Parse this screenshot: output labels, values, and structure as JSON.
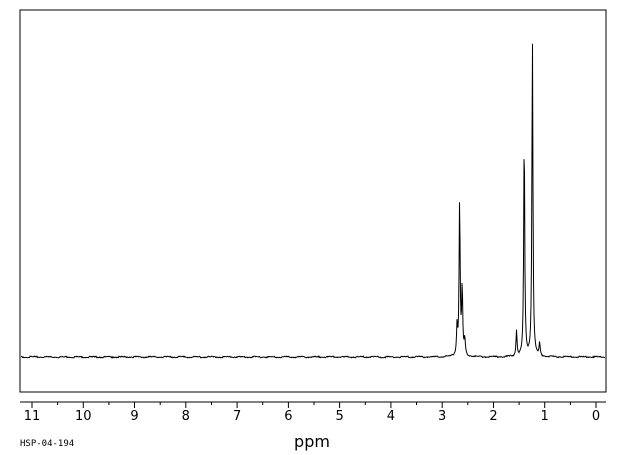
{
  "chart_data": {
    "type": "line",
    "title": "",
    "xlabel": "ppm",
    "ylabel": "",
    "sample_id": "HSP-04-194",
    "x_reversed": true,
    "xlim": [
      11.5,
      -0.2
    ],
    "ylim": [
      -0.05,
      1.05
    ],
    "x_ticks": [
      11,
      10,
      9,
      8,
      7,
      6,
      5,
      4,
      3,
      2,
      1,
      0
    ],
    "x_tick_labels": [
      "11",
      "10",
      "9",
      "8",
      "7",
      "6",
      "5",
      "4",
      "3",
      "2",
      "1",
      "0"
    ],
    "grid": false,
    "legend": "none",
    "colors": {
      "line": "#000000",
      "frame": "#000000",
      "background": "#ffffff"
    },
    "peaks": [
      {
        "shift": 2.71,
        "intensity": 0.09
      },
      {
        "shift": 2.66,
        "intensity": 0.48
      },
      {
        "shift": 2.61,
        "intensity": 0.21
      },
      {
        "shift": 2.56,
        "intensity": 0.05
      },
      {
        "shift": 1.55,
        "intensity": 0.08
      },
      {
        "shift": 1.4,
        "intensity": 0.68
      },
      {
        "shift": 1.24,
        "intensity": 0.98
      },
      {
        "shift": 1.1,
        "intensity": 0.04
      }
    ]
  }
}
